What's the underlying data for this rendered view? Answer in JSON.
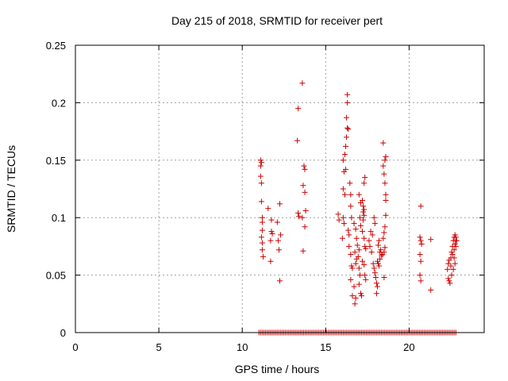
{
  "chart_data": {
    "type": "scatter",
    "title": "Day 215 of 2018, SRMTID for receiver pert",
    "xlabel": "GPS time / hours",
    "ylabel": "SRMTID / TECUs",
    "xlim": [
      0,
      24.5
    ],
    "ylim": [
      0,
      0.25
    ],
    "xticks": [
      0,
      5,
      10,
      15,
      20
    ],
    "xtick_labels": [
      "0",
      "5",
      "10",
      "15",
      "20"
    ],
    "yticks": [
      0,
      0.05,
      0.1,
      0.15,
      0.2,
      0.25
    ],
    "ytick_labels": [
      "0",
      "0.05",
      "0.1",
      "0.15",
      "0.2",
      "0.25"
    ],
    "grid": true,
    "marker": "+",
    "color": "#cc0000",
    "series": [
      {
        "name": "SRMTID",
        "points": [
          [
            11.1,
            0.15
          ],
          [
            11.1,
            0.145
          ],
          [
            11.15,
            0.148
          ],
          [
            11.1,
            0.136
          ],
          [
            11.15,
            0.13
          ],
          [
            11.15,
            0.114
          ],
          [
            11.2,
            0.1
          ],
          [
            11.2,
            0.096
          ],
          [
            11.2,
            0.089
          ],
          [
            11.15,
            0.083
          ],
          [
            11.2,
            0.078
          ],
          [
            11.2,
            0.072
          ],
          [
            11.25,
            0.066
          ],
          [
            11.55,
            0.108
          ],
          [
            11.75,
            0.098
          ],
          [
            11.75,
            0.088
          ],
          [
            11.8,
            0.086
          ],
          [
            11.7,
            0.08
          ],
          [
            11.7,
            0.062
          ],
          [
            12.1,
            0.096
          ],
          [
            12.25,
            0.112
          ],
          [
            12.15,
            0.08
          ],
          [
            12.3,
            0.085
          ],
          [
            12.2,
            0.072
          ],
          [
            12.25,
            0.045
          ],
          [
            13.3,
            0.167
          ],
          [
            13.35,
            0.195
          ],
          [
            13.6,
            0.217
          ],
          [
            13.35,
            0.104
          ],
          [
            13.4,
            0.101
          ],
          [
            13.7,
            0.145
          ],
          [
            13.75,
            0.142
          ],
          [
            13.65,
            0.128
          ],
          [
            13.75,
            0.122
          ],
          [
            13.8,
            0.106
          ],
          [
            13.6,
            0.1
          ],
          [
            13.75,
            0.092
          ],
          [
            13.65,
            0.071
          ],
          [
            15.75,
            0.103
          ],
          [
            15.8,
            0.098
          ],
          [
            16.05,
            0.1
          ],
          [
            16.1,
            0.095
          ],
          [
            16.0,
            0.082
          ],
          [
            16.05,
            0.15
          ],
          [
            16.15,
            0.155
          ],
          [
            16.1,
            0.14
          ],
          [
            16.2,
            0.142
          ],
          [
            16.05,
            0.125
          ],
          [
            16.15,
            0.12
          ],
          [
            16.2,
            0.162
          ],
          [
            16.25,
            0.17
          ],
          [
            16.3,
            0.178
          ],
          [
            16.35,
            0.177
          ],
          [
            16.25,
            0.187
          ],
          [
            16.3,
            0.2
          ],
          [
            16.3,
            0.207
          ],
          [
            16.35,
            0.089
          ],
          [
            16.4,
            0.085
          ],
          [
            16.45,
            0.13
          ],
          [
            16.5,
            0.12
          ],
          [
            16.5,
            0.11
          ],
          [
            16.55,
            0.1
          ],
          [
            16.4,
            0.075
          ],
          [
            16.5,
            0.068
          ],
          [
            16.55,
            0.058
          ],
          [
            16.6,
            0.056
          ],
          [
            16.5,
            0.046
          ],
          [
            16.6,
            0.032
          ],
          [
            16.7,
            0.04
          ],
          [
            16.75,
            0.025
          ],
          [
            16.8,
            0.03
          ],
          [
            16.75,
            0.07
          ],
          [
            16.8,
            0.06
          ],
          [
            16.85,
            0.064
          ],
          [
            16.7,
            0.095
          ],
          [
            16.8,
            0.09
          ],
          [
            16.85,
            0.082
          ],
          [
            16.9,
            0.076
          ],
          [
            16.95,
            0.066
          ],
          [
            17.0,
            0.072
          ],
          [
            17.0,
            0.056
          ],
          [
            17.05,
            0.05
          ],
          [
            17.0,
            0.042
          ],
          [
            17.1,
            0.034
          ],
          [
            17.15,
            0.032
          ],
          [
            17.0,
            0.12
          ],
          [
            17.1,
            0.113
          ],
          [
            17.05,
            0.1
          ],
          [
            17.1,
            0.093
          ],
          [
            17.2,
            0.088
          ],
          [
            17.25,
            0.098
          ],
          [
            17.25,
            0.105
          ],
          [
            17.3,
            0.102
          ],
          [
            17.3,
            0.107
          ],
          [
            17.25,
            0.11
          ],
          [
            17.2,
            0.115
          ],
          [
            17.3,
            0.13
          ],
          [
            17.35,
            0.135
          ],
          [
            17.3,
            0.082
          ],
          [
            17.35,
            0.075
          ],
          [
            17.4,
            0.073
          ],
          [
            17.2,
            0.062
          ],
          [
            17.3,
            0.059
          ],
          [
            17.35,
            0.05
          ],
          [
            17.4,
            0.046
          ],
          [
            17.6,
            0.08
          ],
          [
            17.65,
            0.075
          ],
          [
            17.7,
            0.088
          ],
          [
            17.75,
            0.07
          ],
          [
            17.8,
            0.085
          ],
          [
            17.9,
            0.1
          ],
          [
            17.95,
            0.095
          ],
          [
            17.85,
            0.06
          ],
          [
            17.9,
            0.056
          ],
          [
            17.95,
            0.052
          ],
          [
            18.0,
            0.048
          ],
          [
            18.05,
            0.043
          ],
          [
            18.1,
            0.04
          ],
          [
            18.05,
            0.034
          ],
          [
            18.1,
            0.062
          ],
          [
            18.15,
            0.06
          ],
          [
            18.2,
            0.058
          ],
          [
            18.25,
            0.064
          ],
          [
            18.25,
            0.07
          ],
          [
            18.15,
            0.076
          ],
          [
            18.2,
            0.08
          ],
          [
            18.3,
            0.072
          ],
          [
            18.35,
            0.067
          ],
          [
            18.4,
            0.068
          ],
          [
            18.5,
            0.07
          ],
          [
            18.55,
            0.074
          ],
          [
            18.5,
            0.048
          ],
          [
            18.45,
            0.145
          ],
          [
            18.55,
            0.15
          ],
          [
            18.6,
            0.153
          ],
          [
            18.5,
            0.138
          ],
          [
            18.55,
            0.13
          ],
          [
            18.6,
            0.12
          ],
          [
            18.6,
            0.115
          ],
          [
            18.45,
            0.165
          ],
          [
            18.6,
            0.102
          ],
          [
            18.55,
            0.092
          ],
          [
            18.5,
            0.087
          ],
          [
            18.45,
            0.082
          ],
          [
            20.7,
            0.11
          ],
          [
            20.65,
            0.083
          ],
          [
            20.7,
            0.08
          ],
          [
            20.75,
            0.077
          ],
          [
            20.65,
            0.068
          ],
          [
            20.7,
            0.062
          ],
          [
            20.65,
            0.05
          ],
          [
            20.7,
            0.045
          ],
          [
            21.3,
            0.081
          ],
          [
            21.3,
            0.037
          ],
          [
            22.3,
            0.055
          ],
          [
            22.35,
            0.06
          ],
          [
            22.4,
            0.063
          ],
          [
            22.35,
            0.047
          ],
          [
            22.4,
            0.045
          ],
          [
            22.45,
            0.043
          ],
          [
            22.5,
            0.065
          ],
          [
            22.55,
            0.07
          ],
          [
            22.6,
            0.075
          ],
          [
            22.65,
            0.08
          ],
          [
            22.7,
            0.083
          ],
          [
            22.75,
            0.085
          ],
          [
            22.6,
            0.068
          ],
          [
            22.7,
            0.072
          ],
          [
            22.75,
            0.077
          ],
          [
            22.8,
            0.08
          ],
          [
            22.8,
            0.075
          ],
          [
            22.75,
            0.06
          ],
          [
            22.65,
            0.055
          ],
          [
            22.55,
            0.05
          ],
          [
            22.85,
            0.08
          ],
          [
            22.8,
            0.083
          ],
          [
            22.7,
            0.065
          ],
          [
            22.5,
            0.058
          ]
        ],
        "baseline_zero_x_range": [
          11.0,
          22.8
        ],
        "baseline_zero_count": 120
      }
    ]
  }
}
